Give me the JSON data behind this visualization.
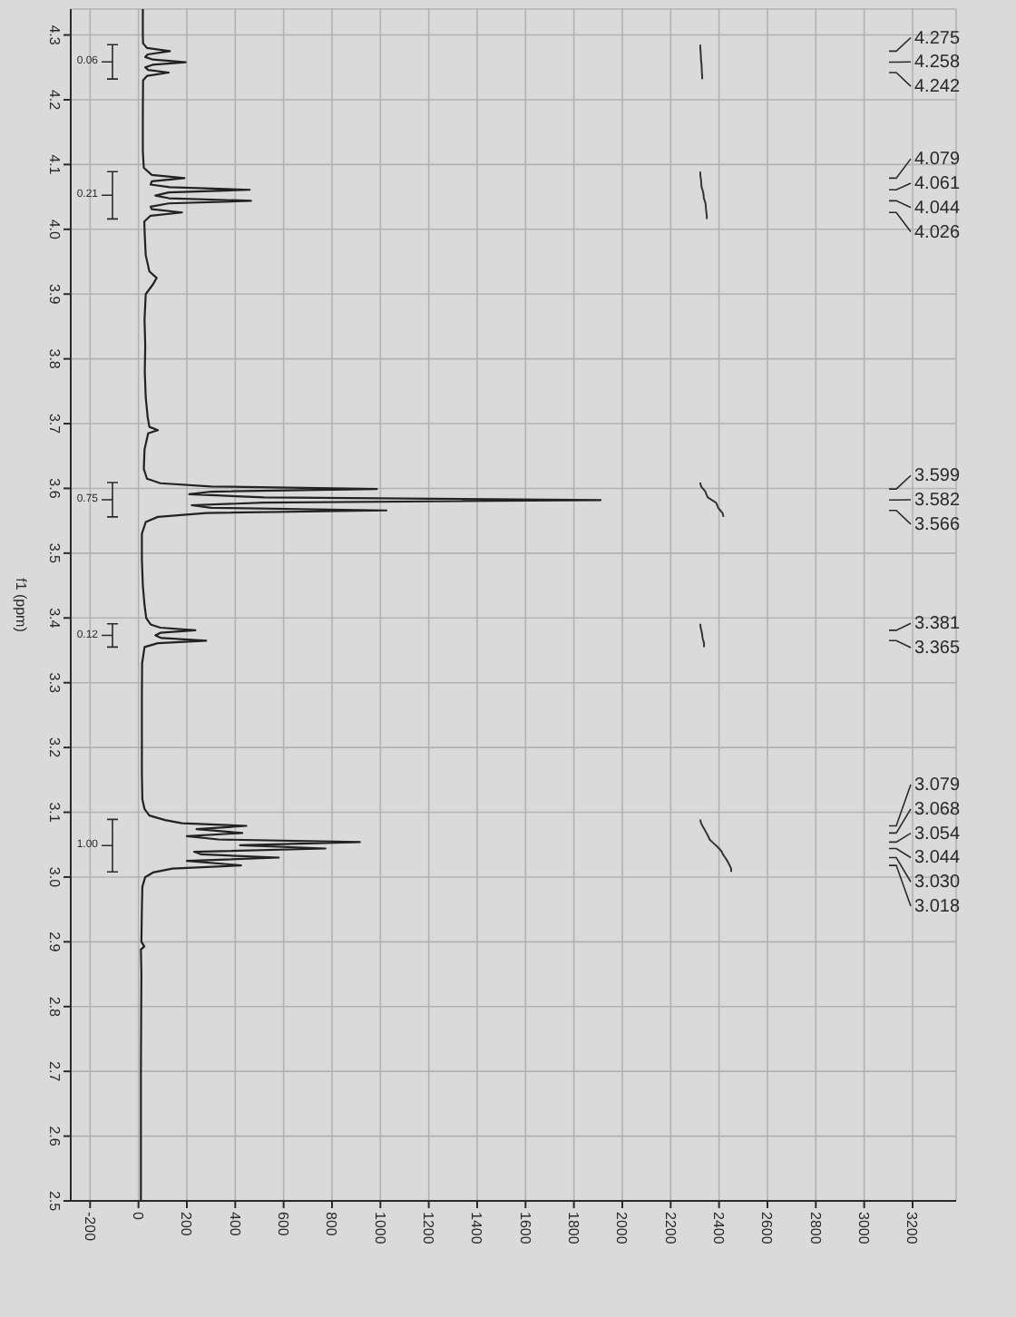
{
  "chart_data": {
    "type": "line",
    "ylabel": "f1 (ppm)",
    "ylim": [
      2.5,
      4.34
    ],
    "yticks": [
      4.3,
      4.2,
      4.1,
      {
        "value": 4,
        "label": "4.0"
      },
      3.9,
      3.8,
      3.7,
      3.6,
      3.5,
      3.4,
      3.3,
      3.2,
      3.1,
      {
        "value": 3,
        "label": "3.0"
      },
      2.9,
      2.8,
      2.7,
      2.6,
      2.5
    ],
    "xlim": [
      -280,
      3380
    ],
    "xticks": [
      -200,
      0,
      200,
      400,
      600,
      800,
      1000,
      1200,
      1400,
      1600,
      1800,
      2000,
      2200,
      2400,
      2600,
      2800,
      3000,
      3200
    ],
    "grid": true,
    "series": [
      {
        "color": "#222222",
        "values": [
          4.34,
          4.3,
          4.287,
          4.28,
          4.275,
          4.27,
          4.266,
          4.262,
          4.258,
          4.254,
          4.25,
          4.246,
          4.242,
          4.237,
          4.23,
          4.18,
          4.12,
          4.095,
          4.084,
          4.079,
          4.074,
          4.069,
          4.065,
          4.061,
          4.057,
          4.052,
          4.048,
          4.044,
          4.04,
          4.035,
          4.031,
          4.026,
          4.021,
          4.012,
          3.99,
          3.96,
          3.935,
          3.925,
          3.915,
          3.9,
          3.86,
          3.82,
          3.78,
          3.74,
          3.71,
          3.695,
          3.69,
          3.685,
          3.66,
          3.63,
          3.615,
          3.608,
          3.603,
          3.599,
          3.595,
          3.591,
          3.586,
          3.582,
          3.578,
          3.574,
          3.57,
          3.566,
          3.562,
          3.556,
          3.548,
          3.53,
          3.49,
          3.45,
          3.42,
          3.4,
          3.39,
          3.385,
          3.381,
          3.377,
          3.373,
          3.369,
          3.365,
          3.361,
          3.355,
          3.33,
          3.28,
          3.22,
          3.16,
          3.12,
          3.105,
          3.095,
          3.088,
          3.083,
          3.079,
          3.074,
          3.068,
          3.063,
          3.058,
          3.054,
          3.049,
          3.044,
          3.039,
          3.035,
          3.03,
          3.025,
          3.018,
          3.013,
          3.007,
          3.0,
          2.985,
          2.95,
          2.9,
          2.893,
          2.888,
          2.85,
          2.78,
          2.7,
          2.62,
          2.5
        ],
        "x": [
          18,
          18,
          19,
          35,
          130,
          38,
          28,
          60,
          195,
          58,
          28,
          40,
          125,
          36,
          19,
          18,
          18,
          22,
          55,
          190,
          55,
          50,
          130,
          460,
          125,
          70,
          125,
          465,
          125,
          50,
          55,
          180,
          50,
          24,
          26,
          30,
          45,
          75,
          60,
          30,
          25,
          28,
          26,
          30,
          38,
          45,
          80,
          40,
          25,
          22,
          35,
          90,
          300,
          985,
          300,
          210,
          520,
          1910,
          520,
          220,
          300,
          1025,
          280,
          80,
          30,
          14,
          14,
          18,
          25,
          32,
          50,
          90,
          235,
          90,
          70,
          95,
          280,
          80,
          25,
          15,
          14,
          14,
          14,
          16,
          25,
          45,
          110,
          180,
          446,
          240,
          429,
          200,
          330,
          915,
          420,
          773,
          230,
          260,
          580,
          200,
          424,
          140,
          60,
          28,
          16,
          14,
          12,
          24,
          10,
          12,
          11,
          10,
          10,
          10
        ]
      }
    ],
    "annotations": [
      "4.275",
      "4.258",
      "4.242",
      "4.079",
      "4.061",
      "4.044",
      "4.026",
      "3.599",
      "3.582",
      "3.566",
      "3.381",
      "3.365",
      "3.079",
      "3.068",
      "3.054",
      "3.044",
      "3.030",
      "3.018",
      "0.06",
      "0.21",
      "0.75",
      "0.12",
      "1.00"
    ]
  }
}
